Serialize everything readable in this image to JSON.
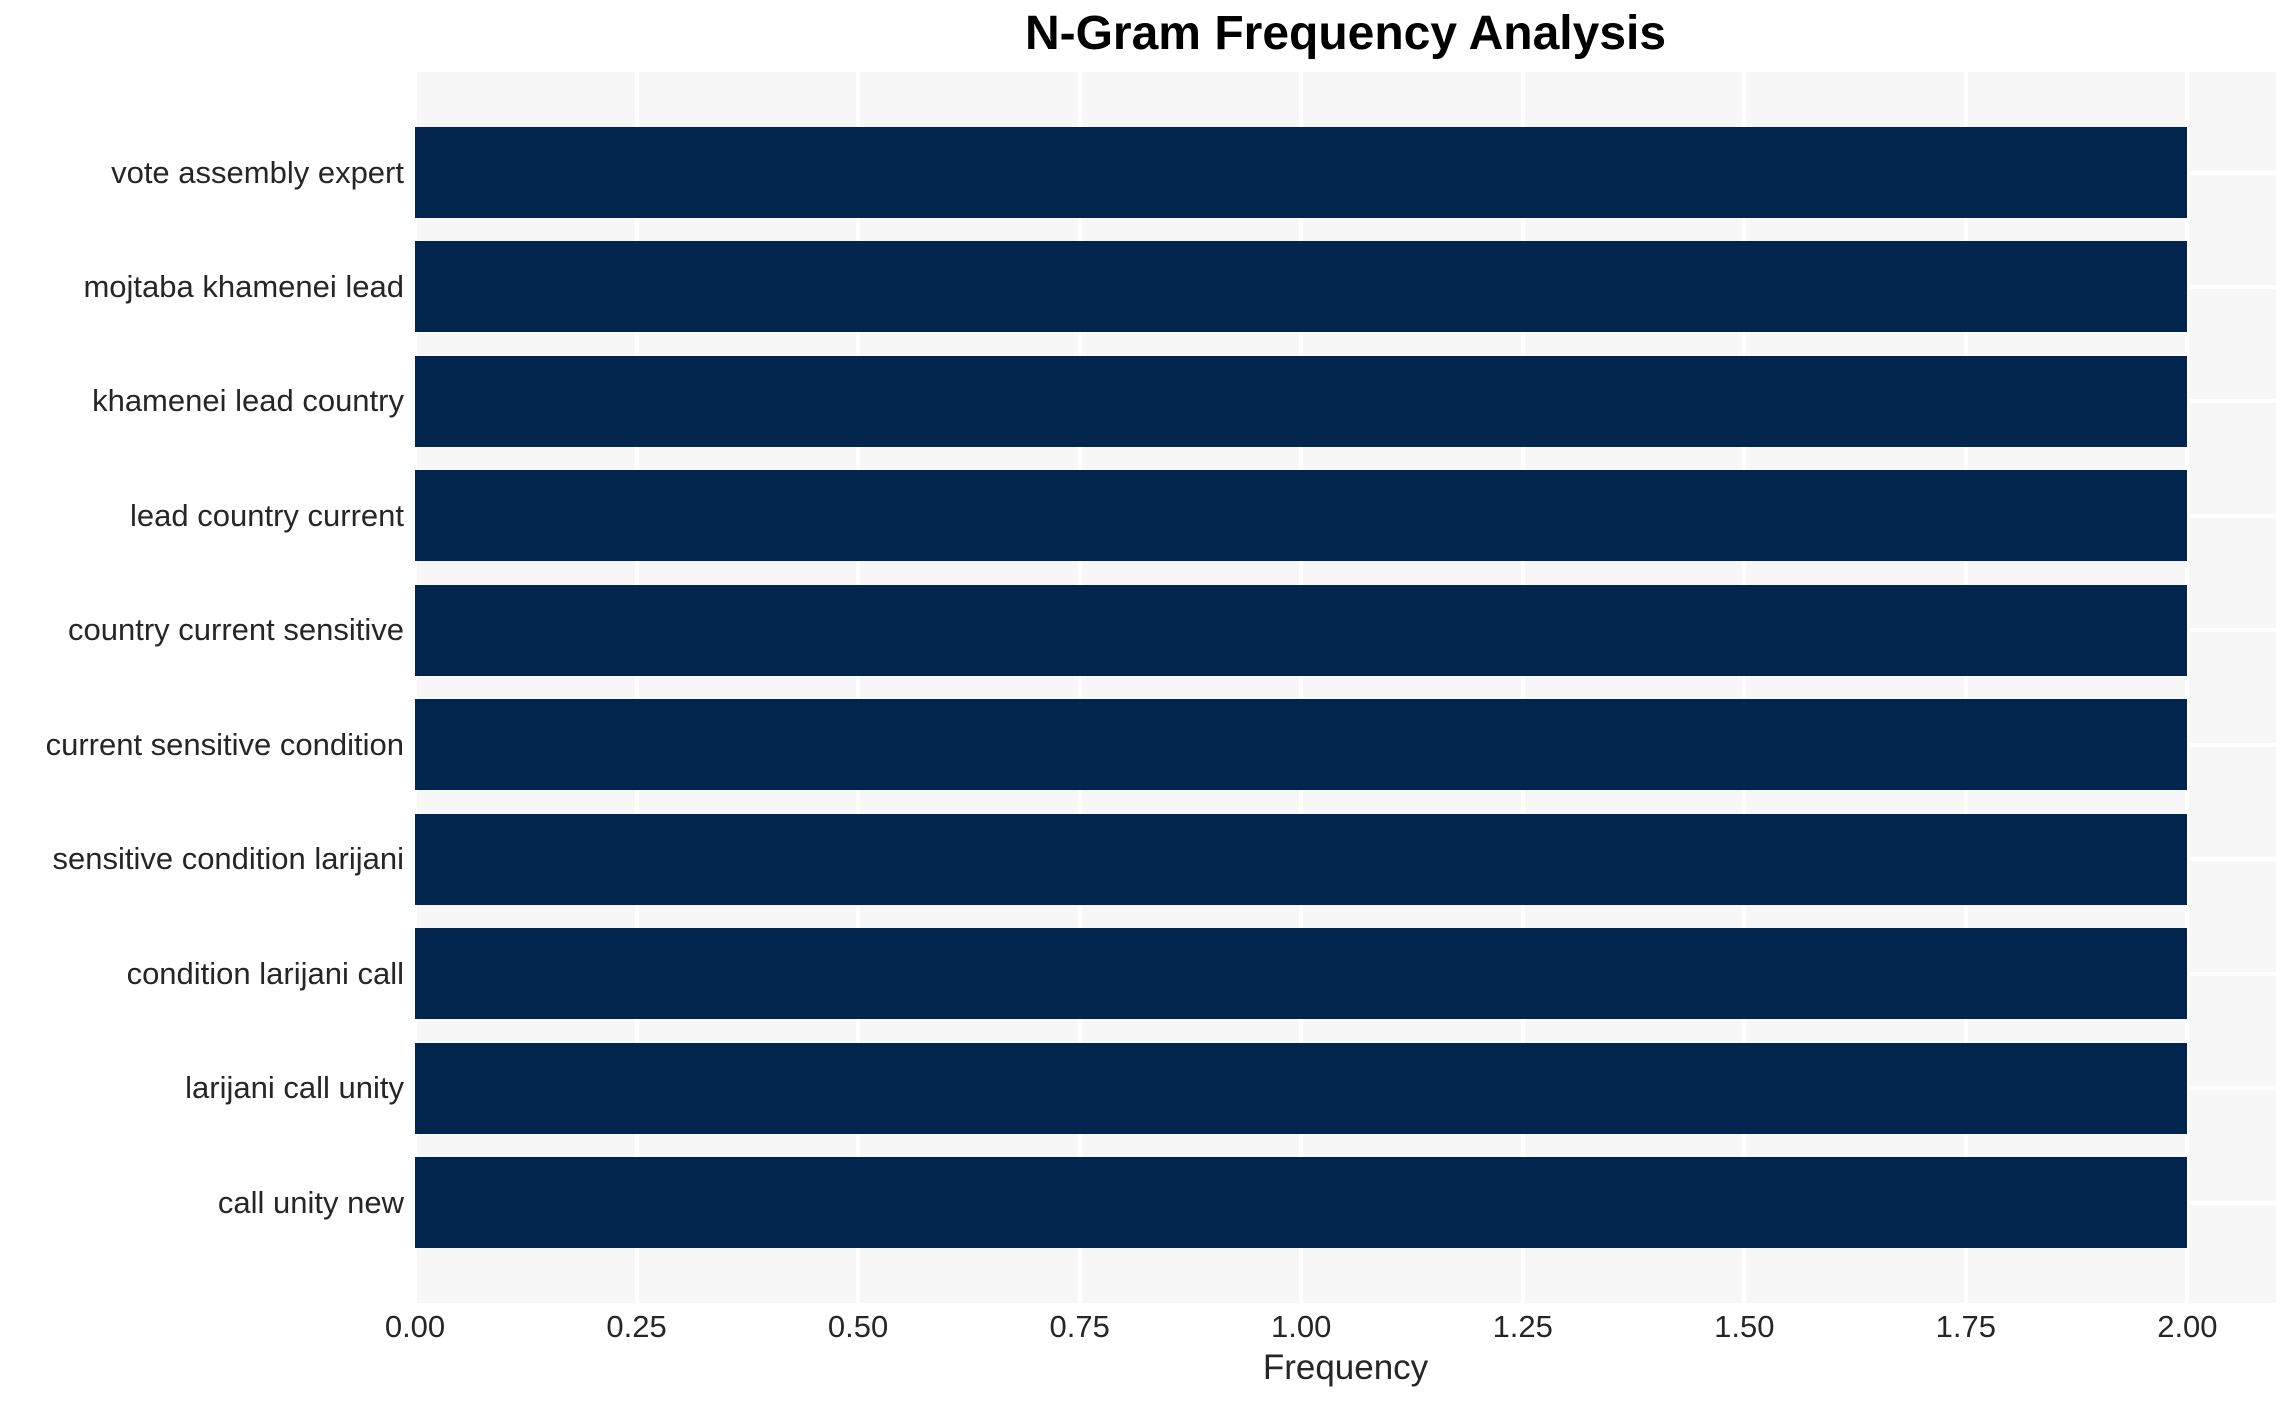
{
  "title": "N-Gram Frequency Analysis",
  "chart_data": {
    "type": "bar",
    "orientation": "horizontal",
    "title": "N-Gram Frequency Analysis",
    "xlabel": "Frequency",
    "ylabel": "",
    "categories": [
      "vote assembly expert",
      "mojtaba khamenei lead",
      "khamenei lead country",
      "lead country current",
      "country current sensitive",
      "current sensitive condition",
      "sensitive condition larijani",
      "condition larijani call",
      "larijani call unity",
      "call unity new"
    ],
    "values": [
      2.0,
      2.0,
      2.0,
      2.0,
      2.0,
      2.0,
      2.0,
      2.0,
      2.0,
      2.0
    ],
    "xlim": [
      0,
      2.1
    ],
    "xticks": [
      0.0,
      0.25,
      0.5,
      0.75,
      1.0,
      1.25,
      1.5,
      1.75,
      2.0
    ],
    "xtick_labels": [
      "0.00",
      "0.25",
      "0.50",
      "0.75",
      "1.00",
      "1.25",
      "1.50",
      "1.75",
      "2.00"
    ],
    "grid": true,
    "legend": false
  },
  "colors": {
    "bar": "#02254d",
    "plot_background": "#f7f7f8",
    "gridline": "#ffffff",
    "tick_text": "#262626",
    "title_text": "#000000",
    "figure_background": "#ffffff"
  }
}
